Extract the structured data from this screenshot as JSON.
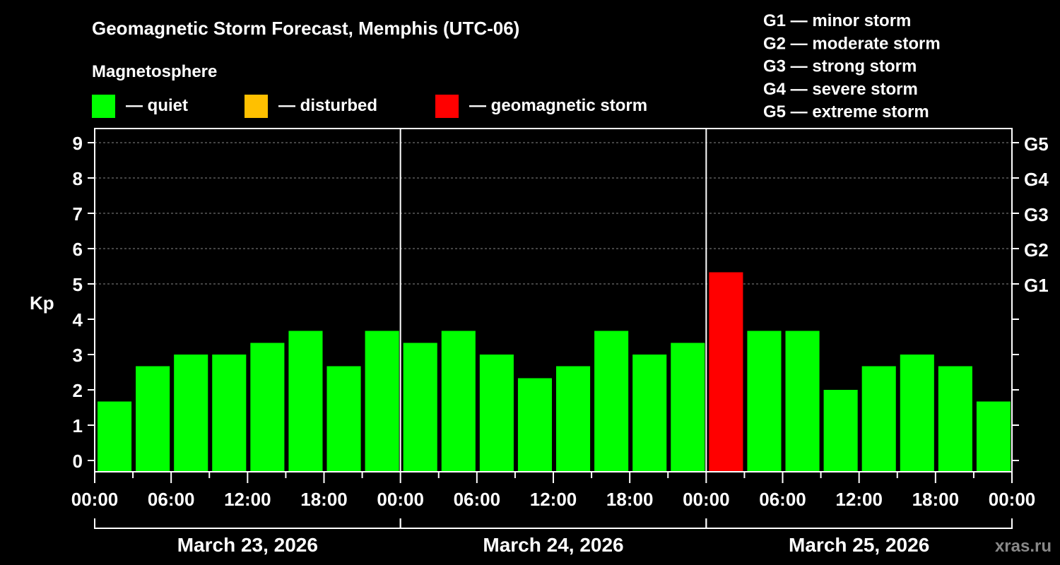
{
  "chart_data": {
    "type": "bar",
    "title": "Geomagnetic Storm Forecast, Memphis (UTC-06)",
    "ylabel": "Kp",
    "ylim": [
      0,
      9
    ],
    "yticks": [
      "0",
      "1",
      "2",
      "3",
      "4",
      "5",
      "6",
      "7",
      "8",
      "9"
    ],
    "right_ticks": [
      {
        "kp": 5,
        "label": "G1"
      },
      {
        "kp": 6,
        "label": "G2"
      },
      {
        "kp": 7,
        "label": "G3"
      },
      {
        "kp": 8,
        "label": "G4"
      },
      {
        "kp": 9,
        "label": "G5"
      }
    ],
    "grid": "dashed at Kp 5-9",
    "xtick_labels": [
      "00:00",
      "06:00",
      "12:00",
      "18:00",
      "00:00",
      "06:00",
      "12:00",
      "18:00",
      "00:00",
      "06:00",
      "12:00",
      "18:00",
      "00:00"
    ],
    "days": [
      "March 23, 2026",
      "March 24, 2026",
      "March 25, 2026"
    ],
    "interval_hours": 3,
    "values": [
      1.67,
      2.67,
      3,
      3,
      3.33,
      3.67,
      2.67,
      3.67,
      3.33,
      3.67,
      3,
      2.33,
      2.67,
      3.67,
      3,
      3.33,
      5.33,
      3.67,
      3.67,
      2,
      2.67,
      3,
      2.67,
      1.67
    ],
    "thresholds": {
      "disturbed": 4,
      "storm": 5
    },
    "colors": {
      "quiet": "#00ff00",
      "disturbed": "#ffc000",
      "storm": "#ff0000"
    }
  },
  "legend": {
    "heading": "Magnetosphere",
    "items": [
      {
        "label": "— quiet",
        "color": "#00ff00"
      },
      {
        "label": "— disturbed",
        "color": "#ffc000"
      },
      {
        "label": "— geomagnetic storm",
        "color": "#ff0000"
      }
    ]
  },
  "scale": [
    "G1 — minor storm",
    "G2 — moderate storm",
    "G3 — strong storm",
    "G4 — severe storm",
    "G5 — extreme storm"
  ],
  "watermark": "xras.ru"
}
